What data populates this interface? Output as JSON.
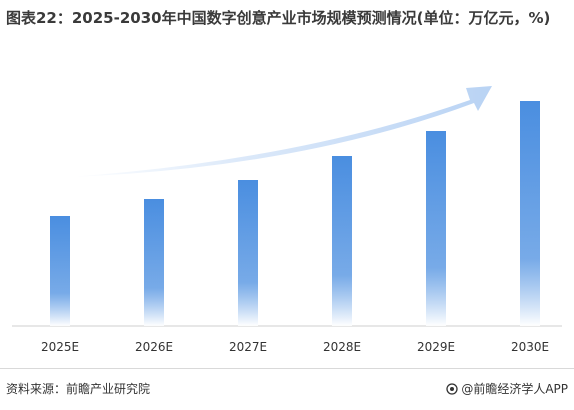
{
  "title": "图表22：2025-2030年中国数字创意产业市场规模预测情况(单位：万亿元，%)",
  "source_label": "资料来源：前瞻产业研究院",
  "brand_label": "@前瞻经济学人APP",
  "colors": {
    "bar_top": "#4a8ee0",
    "bar_bottom": "#ffffff",
    "arrow": "#b9d3f4",
    "axis": "#cfcfcf",
    "text": "#333333"
  },
  "chart_data": {
    "type": "bar",
    "categories": [
      "2025E",
      "2026E",
      "2027E",
      "2028E",
      "2029E",
      "2030E"
    ],
    "values": [
      110,
      127,
      146,
      170,
      195,
      225
    ],
    "ylim": [
      0,
      230
    ],
    "grid": false,
    "legend": "none",
    "xlabel": "",
    "ylabel": ""
  }
}
